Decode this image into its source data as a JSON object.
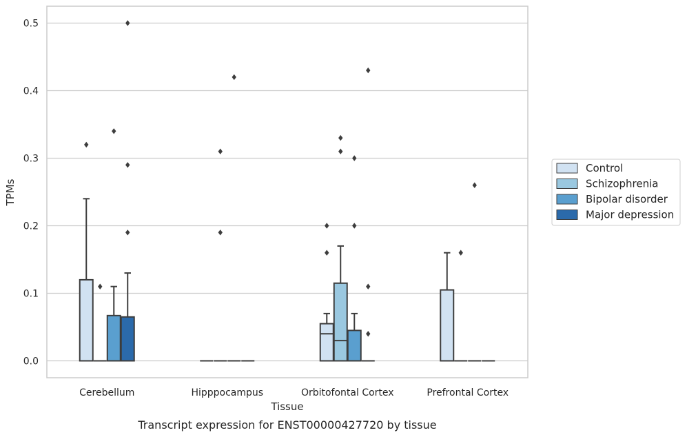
{
  "caption": "Transcript expression for ENST00000427720 by tissue",
  "chart_data": {
    "type": "box",
    "title": "",
    "xlabel": "Tissue",
    "ylabel": "TPMs",
    "ylim": [
      -0.025,
      0.525
    ],
    "yticks": [
      "0.0",
      "0.1",
      "0.2",
      "0.3",
      "0.4",
      "0.5"
    ],
    "grid": "horizontal",
    "legend_position": "right",
    "categories": [
      "Cerebellum",
      "Hipppocampus",
      "Orbitofontal Cortex",
      "Prefrontal Cortex"
    ],
    "series": [
      {
        "name": "Control",
        "color": "#d1e2f2",
        "boxes": [
          {
            "q1": 0.0,
            "median": 0.0,
            "q3": 0.12,
            "whisker_low": 0.0,
            "whisker_high": 0.24,
            "outliers": [
              0.32
            ]
          },
          {
            "q1": 0.0,
            "median": 0.0,
            "q3": 0.0,
            "whisker_low": 0.0,
            "whisker_high": 0.0,
            "outliers": []
          },
          {
            "q1": 0.0,
            "median": 0.04,
            "q3": 0.055,
            "whisker_low": 0.0,
            "whisker_high": 0.07,
            "outliers": [
              0.16,
              0.2
            ]
          },
          {
            "q1": 0.0,
            "median": 0.0,
            "q3": 0.105,
            "whisker_low": 0.0,
            "whisker_high": 0.16,
            "outliers": []
          }
        ]
      },
      {
        "name": "Schizophrenia",
        "color": "#9ac8e0",
        "boxes": [
          {
            "q1": 0.0,
            "median": 0.0,
            "q3": 0.0,
            "whisker_low": 0.0,
            "whisker_high": 0.0,
            "outliers": [
              0.11
            ]
          },
          {
            "q1": 0.0,
            "median": 0.0,
            "q3": 0.0,
            "whisker_low": 0.0,
            "whisker_high": 0.0,
            "outliers": [
              0.19,
              0.31
            ]
          },
          {
            "q1": 0.0,
            "median": 0.03,
            "q3": 0.115,
            "whisker_low": 0.0,
            "whisker_high": 0.17,
            "outliers": [
              0.31,
              0.33
            ]
          },
          {
            "q1": 0.0,
            "median": 0.0,
            "q3": 0.0,
            "whisker_low": 0.0,
            "whisker_high": 0.0,
            "outliers": [
              0.16
            ]
          }
        ]
      },
      {
        "name": "Bipolar disorder",
        "color": "#5a9fcf",
        "boxes": [
          {
            "q1": 0.0,
            "median": 0.0,
            "q3": 0.067,
            "whisker_low": 0.0,
            "whisker_high": 0.11,
            "outliers": [
              0.34
            ]
          },
          {
            "q1": 0.0,
            "median": 0.0,
            "q3": 0.0,
            "whisker_low": 0.0,
            "whisker_high": 0.0,
            "outliers": [
              0.42
            ]
          },
          {
            "q1": 0.0,
            "median": 0.0,
            "q3": 0.045,
            "whisker_low": 0.0,
            "whisker_high": 0.07,
            "outliers": [
              0.2,
              0.3
            ]
          },
          {
            "q1": 0.0,
            "median": 0.0,
            "q3": 0.0,
            "whisker_low": 0.0,
            "whisker_high": 0.0,
            "outliers": [
              0.26
            ]
          }
        ]
      },
      {
        "name": "Major depression",
        "color": "#2b6aab",
        "boxes": [
          {
            "q1": 0.0,
            "median": 0.0,
            "q3": 0.065,
            "whisker_low": 0.0,
            "whisker_high": 0.13,
            "outliers": [
              0.19,
              0.29,
              0.5
            ]
          },
          {
            "q1": 0.0,
            "median": 0.0,
            "q3": 0.0,
            "whisker_low": 0.0,
            "whisker_high": 0.0,
            "outliers": []
          },
          {
            "q1": 0.0,
            "median": 0.0,
            "q3": 0.0,
            "whisker_low": 0.0,
            "whisker_high": 0.0,
            "outliers": [
              0.04,
              0.11,
              0.43
            ]
          },
          {
            "q1": 0.0,
            "median": 0.0,
            "q3": 0.0,
            "whisker_low": 0.0,
            "whisker_high": 0.0,
            "outliers": []
          }
        ]
      }
    ]
  }
}
